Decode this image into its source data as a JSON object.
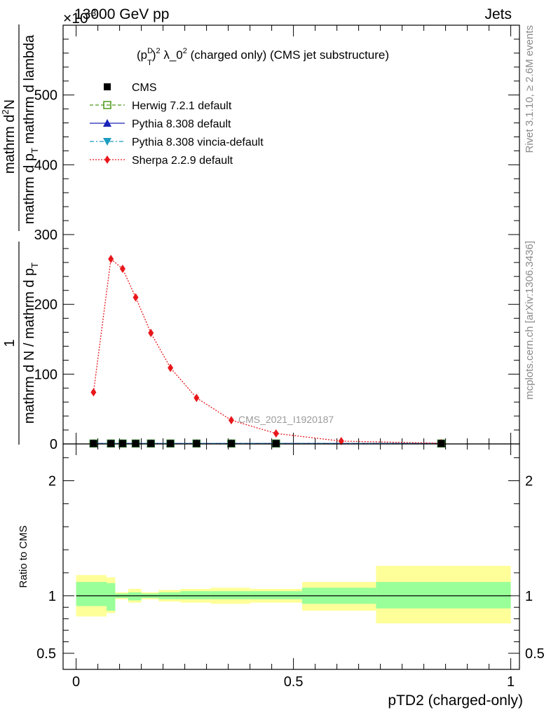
{
  "header": {
    "energy_label": "13000 GeV pp",
    "process_label": "Jets",
    "exponent_label": "×10",
    "exponent_power": "-3"
  },
  "side_labels": {
    "rivet": "Rivet 3.1.10, ≥ 2.6M events",
    "mcplots": "mcplots.cern.ch [arXiv:1306.3436]"
  },
  "title_parts": {
    "p": "(p",
    "sup_d": "D",
    "sub_t": "T",
    "close": ")",
    "sup_2a": "2",
    "lambda": " λ_0",
    "sup_2b": "2",
    "rest": " (charged only) (CMS jet substructure)"
  },
  "watermark": "CMS_2021_I1920187",
  "ylabel_main": {
    "numerator": "1",
    "denominator": "mathrm d N / mathrm d p",
    "denominator_sub": "T",
    "right_numerator": "mathrm d",
    "right_numerator_sup": "2",
    "right_numerator_tail": "N",
    "right_denominator": "mathrm d p",
    "right_denominator_sub": "T",
    "right_denominator_tail": " mathrm d lambda"
  },
  "ylabel_ratio": "Ratio to CMS",
  "xlabel": "pTD2 (charged-only)",
  "legend": [
    {
      "label": "CMS",
      "color": "#000000",
      "marker": "square",
      "line": "none"
    },
    {
      "label": "Herwig 7.2.1 default",
      "color": "#4d9a1a",
      "marker": "open-square",
      "line": "dashed"
    },
    {
      "label": "Pythia 8.308 default",
      "color": "#1a24b8",
      "marker": "triangle",
      "line": "solid"
    },
    {
      "label": "Pythia 8.308 vincia-default",
      "color": "#1c9cc0",
      "marker": "triangle-down",
      "line": "dashdot"
    },
    {
      "label": "Sherpa 2.2.9 default",
      "color": "#e8171b",
      "marker": "diamond",
      "line": "dotted"
    }
  ],
  "chart_data": {
    "type": "line",
    "main": {
      "xlim": [
        -0.03,
        1.02
      ],
      "ylim": [
        0,
        600
      ],
      "yticks": [
        0,
        100,
        200,
        300,
        400,
        500
      ],
      "ytick_labels": [
        "0",
        "100",
        "200",
        "300",
        "400",
        "500"
      ],
      "series": [
        {
          "name": "CMS",
          "x": [
            0.04,
            0.08,
            0.107,
            0.137,
            0.172,
            0.217,
            0.277,
            0.357,
            0.46,
            0.84
          ],
          "y": [
            0.6,
            0.6,
            0.6,
            0.6,
            0.6,
            0.6,
            0.6,
            0.6,
            0.6,
            0.6
          ]
        },
        {
          "name": "Herwig 7.2.1 default",
          "x": [
            0.04,
            0.08,
            0.107,
            0.137,
            0.172,
            0.217,
            0.277,
            0.357,
            0.46,
            0.84
          ],
          "y": [
            0.6,
            0.6,
            0.6,
            0.6,
            0.6,
            0.6,
            0.6,
            0.6,
            0.6,
            0.6
          ]
        },
        {
          "name": "Pythia 8.308 default",
          "x": [
            0.04,
            0.08,
            0.107,
            0.137,
            0.172,
            0.217,
            0.277,
            0.357,
            0.46,
            0.84
          ],
          "y": [
            0.6,
            0.6,
            0.6,
            0.6,
            0.6,
            0.6,
            0.6,
            0.6,
            0.6,
            0.6
          ]
        },
        {
          "name": "Pythia 8.308 vincia-default",
          "x": [
            0.04,
            0.08,
            0.107,
            0.137,
            0.172,
            0.217,
            0.277,
            0.357,
            0.46,
            0.84
          ],
          "y": [
            0.6,
            0.6,
            0.6,
            0.6,
            0.6,
            0.6,
            0.6,
            0.6,
            0.6,
            0.6
          ]
        },
        {
          "name": "Sherpa 2.2.9 default",
          "x": [
            0.04,
            0.08,
            0.107,
            0.137,
            0.172,
            0.217,
            0.277,
            0.357,
            0.46,
            0.61,
            0.84
          ],
          "y": [
            74,
            265,
            251,
            210,
            159,
            109,
            66,
            34,
            15,
            4,
            1
          ]
        }
      ]
    },
    "ratio": {
      "xlim": [
        -0.03,
        1.02
      ],
      "ylim": [
        0.36,
        2.32
      ],
      "yticks": [
        0.5,
        1,
        2
      ],
      "ytick_labels": [
        "0.5",
        "1",
        "2"
      ],
      "reference_line": 1,
      "stat_band_green": [
        {
          "x0": 0.0,
          "x1": 0.07,
          "lo": 0.91,
          "hi": 1.12
        },
        {
          "x0": 0.07,
          "x1": 0.09,
          "lo": 0.87,
          "hi": 1.11
        },
        {
          "x0": 0.09,
          "x1": 0.12,
          "lo": 0.98,
          "hi": 1.02
        },
        {
          "x0": 0.12,
          "x1": 0.15,
          "lo": 0.96,
          "hi": 1.03
        },
        {
          "x0": 0.15,
          "x1": 0.19,
          "lo": 0.98,
          "hi": 1.02
        },
        {
          "x0": 0.19,
          "x1": 0.24,
          "lo": 0.97,
          "hi": 1.03
        },
        {
          "x0": 0.24,
          "x1": 0.31,
          "lo": 0.97,
          "hi": 1.04
        },
        {
          "x0": 0.31,
          "x1": 0.4,
          "lo": 0.97,
          "hi": 1.04
        },
        {
          "x0": 0.4,
          "x1": 0.52,
          "lo": 0.97,
          "hi": 1.04
        },
        {
          "x0": 0.52,
          "x1": 0.69,
          "lo": 0.93,
          "hi": 1.07
        },
        {
          "x0": 0.69,
          "x1": 1.0,
          "lo": 0.89,
          "hi": 1.12
        }
      ],
      "syst_band_yellow": [
        {
          "x0": 0.0,
          "x1": 0.07,
          "lo": 0.82,
          "hi": 1.18
        },
        {
          "x0": 0.07,
          "x1": 0.09,
          "lo": 0.85,
          "hi": 1.16
        },
        {
          "x0": 0.09,
          "x1": 0.12,
          "lo": 0.97,
          "hi": 1.03
        },
        {
          "x0": 0.12,
          "x1": 0.15,
          "lo": 0.94,
          "hi": 1.06
        },
        {
          "x0": 0.15,
          "x1": 0.19,
          "lo": 0.97,
          "hi": 1.03
        },
        {
          "x0": 0.19,
          "x1": 0.24,
          "lo": 0.95,
          "hi": 1.05
        },
        {
          "x0": 0.24,
          "x1": 0.31,
          "lo": 0.94,
          "hi": 1.06
        },
        {
          "x0": 0.31,
          "x1": 0.4,
          "lo": 0.93,
          "hi": 1.07
        },
        {
          "x0": 0.4,
          "x1": 0.52,
          "lo": 0.94,
          "hi": 1.06
        },
        {
          "x0": 0.52,
          "x1": 0.69,
          "lo": 0.87,
          "hi": 1.12
        },
        {
          "x0": 0.69,
          "x1": 1.0,
          "lo": 0.76,
          "hi": 1.26
        }
      ]
    },
    "xticks": [
      0,
      0.5,
      1
    ],
    "xtick_labels": [
      "0",
      "0.5",
      "1"
    ]
  }
}
